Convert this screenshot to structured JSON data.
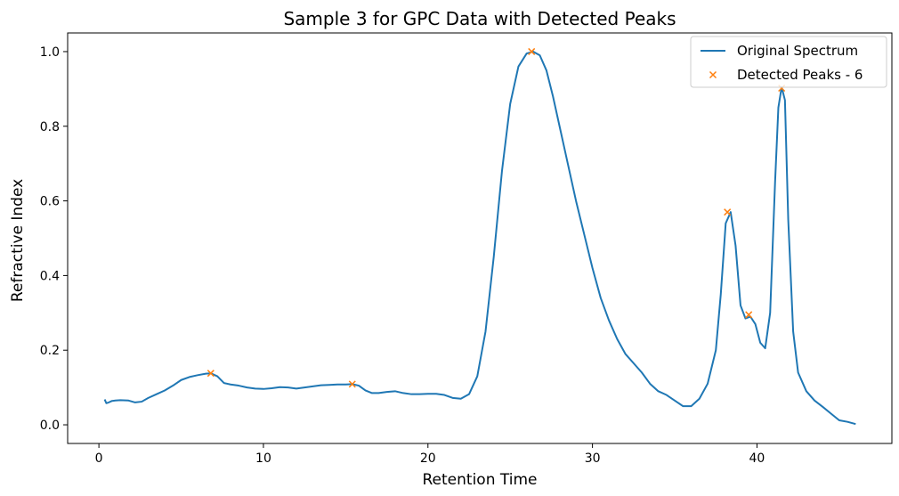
{
  "chart_data": {
    "type": "line",
    "title": "Sample 3 for GPC Data with Detected Peaks",
    "xlabel": "Retention Time",
    "ylabel": "Refractive Index",
    "xlim": [
      -1.9,
      48.2
    ],
    "ylim": [
      -0.05,
      1.05
    ],
    "xticks": [
      0,
      10,
      20,
      30,
      40
    ],
    "yticks": [
      0.0,
      0.2,
      0.4,
      0.6,
      0.8,
      1.0
    ],
    "xtick_labels": [
      "0",
      "10",
      "20",
      "30",
      "40"
    ],
    "ytick_labels": [
      "0.0",
      "0.2",
      "0.4",
      "0.6",
      "0.8",
      "1.0"
    ],
    "grid": false,
    "legend_position": "top-right",
    "legend": [
      "Original Spectrum",
      "Detected Peaks - 6"
    ],
    "series": [
      {
        "name": "Original Spectrum",
        "color": "#1f77b4",
        "style": "line",
        "x": [
          0.35,
          0.45,
          0.6,
          0.8,
          1.0,
          1.3,
          1.8,
          2.2,
          2.6,
          3.0,
          3.5,
          4.0,
          4.5,
          5.0,
          5.5,
          6.0,
          6.5,
          6.8,
          7.2,
          7.6,
          8.0,
          8.5,
          9.0,
          9.5,
          10.0,
          10.5,
          11.0,
          11.5,
          12.0,
          12.5,
          13.0,
          13.5,
          14.0,
          14.5,
          15.0,
          15.4,
          15.8,
          16.2,
          16.6,
          17.0,
          17.5,
          18.0,
          18.5,
          19.0,
          19.5,
          20.0,
          20.5,
          21.0,
          21.5,
          22.0,
          22.5,
          23.0,
          23.5,
          24.0,
          24.5,
          25.0,
          25.5,
          26.0,
          26.4,
          26.8,
          27.2,
          27.6,
          28.0,
          28.5,
          29.0,
          29.5,
          30.0,
          30.5,
          31.0,
          31.5,
          32.0,
          32.5,
          33.0,
          33.5,
          34.0,
          34.5,
          35.0,
          35.5,
          36.0,
          36.5,
          37.0,
          37.5,
          37.8,
          38.1,
          38.4,
          38.7,
          39.0,
          39.3,
          39.6,
          39.9,
          40.2,
          40.5,
          40.8,
          41.1,
          41.3,
          41.5,
          41.7,
          41.9,
          42.2,
          42.5,
          43.0,
          43.5,
          44.0,
          44.5,
          45.0,
          45.5,
          46.0
        ],
        "y": [
          0.068,
          0.058,
          0.06,
          0.064,
          0.065,
          0.066,
          0.065,
          0.06,
          0.062,
          0.072,
          0.082,
          0.092,
          0.105,
          0.12,
          0.128,
          0.133,
          0.137,
          0.138,
          0.13,
          0.112,
          0.108,
          0.105,
          0.1,
          0.097,
          0.096,
          0.098,
          0.101,
          0.1,
          0.097,
          0.1,
          0.103,
          0.106,
          0.107,
          0.108,
          0.108,
          0.109,
          0.105,
          0.092,
          0.085,
          0.085,
          0.088,
          0.09,
          0.085,
          0.082,
          0.082,
          0.083,
          0.083,
          0.08,
          0.072,
          0.07,
          0.082,
          0.13,
          0.25,
          0.45,
          0.68,
          0.86,
          0.96,
          0.995,
          1.0,
          0.99,
          0.95,
          0.88,
          0.8,
          0.7,
          0.6,
          0.51,
          0.42,
          0.34,
          0.28,
          0.23,
          0.19,
          0.165,
          0.14,
          0.11,
          0.09,
          0.08,
          0.065,
          0.05,
          0.05,
          0.07,
          0.11,
          0.2,
          0.35,
          0.54,
          0.57,
          0.48,
          0.32,
          0.285,
          0.29,
          0.27,
          0.22,
          0.205,
          0.3,
          0.65,
          0.85,
          0.905,
          0.87,
          0.55,
          0.25,
          0.14,
          0.09,
          0.065,
          0.048,
          0.03,
          0.012,
          0.008,
          0.002
        ]
      },
      {
        "name": "Detected Peaks - 6",
        "color": "#ff7f0e",
        "style": "x-marker",
        "x": [
          6.8,
          15.4,
          26.3,
          38.2,
          39.5,
          41.5
        ],
        "y": [
          0.138,
          0.109,
          1.0,
          0.57,
          0.295,
          0.902
        ]
      }
    ]
  }
}
